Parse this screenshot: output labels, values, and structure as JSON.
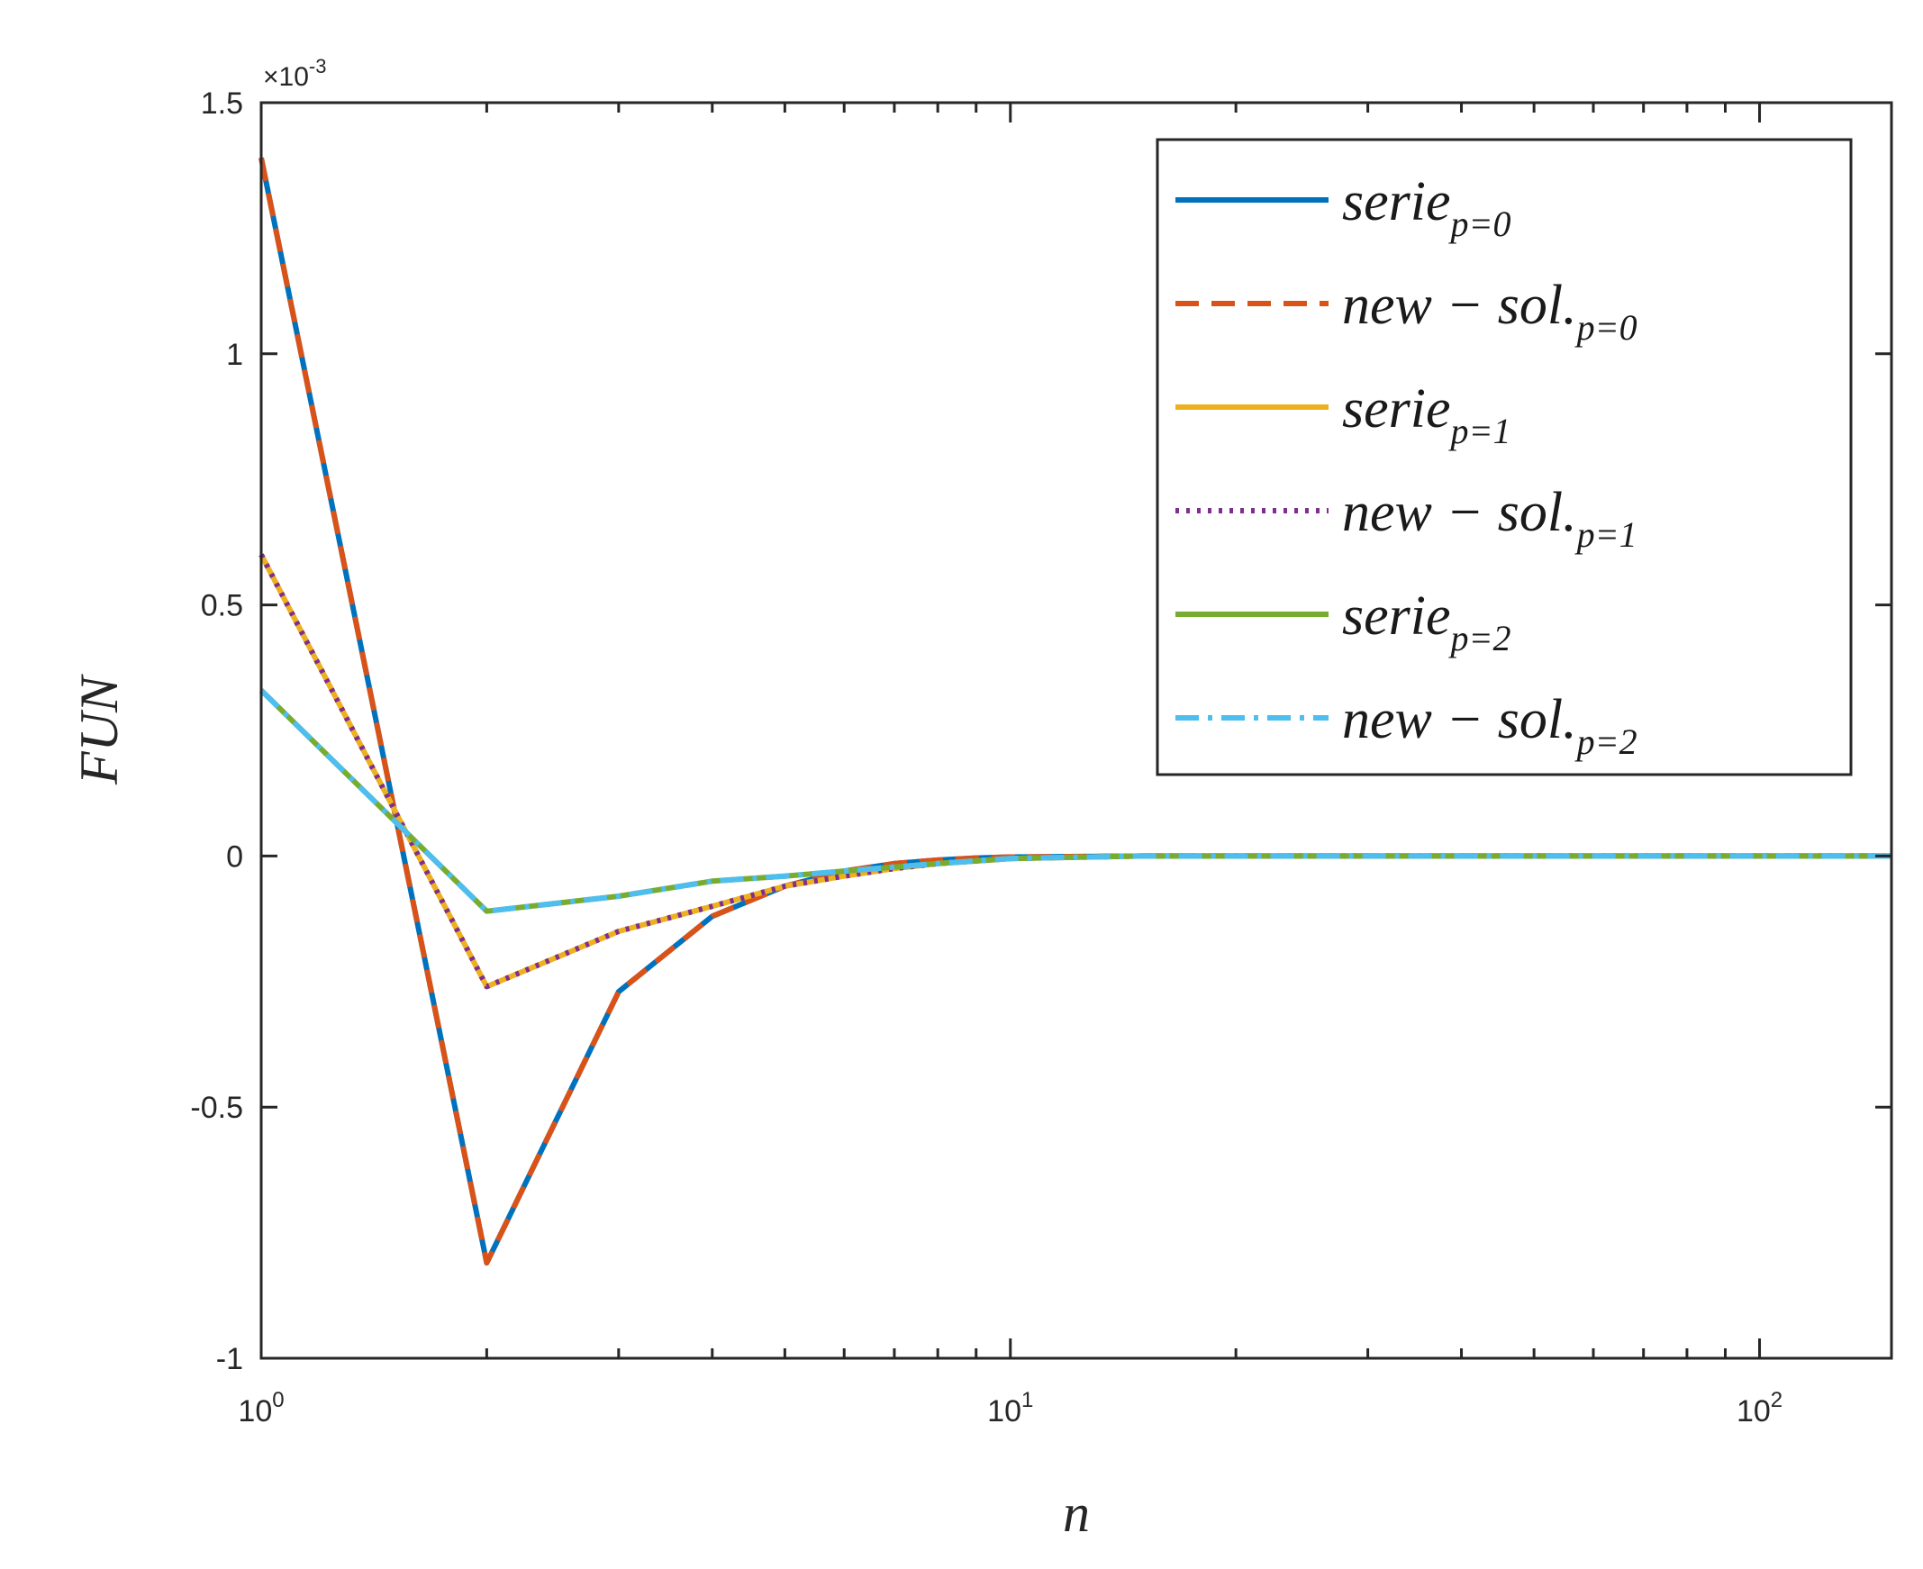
{
  "chart_data": {
    "type": "line",
    "xlabel": "n",
    "ylabel": "FUN",
    "xscale": "log",
    "xlim": [
      1,
      150
    ],
    "ylim": [
      -0.001,
      0.0015
    ],
    "y_exponent_label": "×10",
    "y_exponent_power": "-3",
    "xticks": [
      {
        "value": 1,
        "base": "10",
        "exp": "0"
      },
      {
        "value": 10,
        "base": "10",
        "exp": "1"
      },
      {
        "value": 100,
        "base": "10",
        "exp": "2"
      }
    ],
    "yticks": [
      {
        "value": 0.0015,
        "label": "1.5"
      },
      {
        "value": 0.001,
        "label": "1"
      },
      {
        "value": 0.0005,
        "label": "0.5"
      },
      {
        "value": 0,
        "label": "0"
      },
      {
        "value": -0.0005,
        "label": "-0.5"
      },
      {
        "value": -0.001,
        "label": "-1"
      }
    ],
    "grid": false,
    "legend_position": "top-right",
    "series": [
      {
        "name": "serie",
        "sub": "p=0",
        "color": "#0072BD",
        "dash": "solid",
        "x": [
          1,
          2,
          3,
          4,
          5,
          6,
          7,
          8,
          9,
          10,
          12,
          15,
          20,
          30,
          50,
          100,
          150
        ],
        "y": [
          0.00139,
          -0.00081,
          -0.00027,
          -0.00012,
          -6e-05,
          -3e-05,
          -1.5e-05,
          -8e-06,
          -4e-06,
          -2e-06,
          -1e-06,
          0,
          0,
          0,
          0,
          0,
          0
        ]
      },
      {
        "name": "new − sol.",
        "sub": "p=0",
        "color": "#D95319",
        "dash": "dashed",
        "x": [
          1,
          2,
          3,
          4,
          5,
          6,
          7,
          8,
          9,
          10,
          12,
          15,
          20,
          30,
          50,
          100,
          150
        ],
        "y": [
          0.00139,
          -0.00081,
          -0.00027,
          -0.00012,
          -6e-05,
          -3e-05,
          -1.5e-05,
          -8e-06,
          -4e-06,
          -2e-06,
          -1e-06,
          0,
          0,
          0,
          0,
          0,
          0
        ]
      },
      {
        "name": "serie",
        "sub": "p=1",
        "color": "#EDB120",
        "dash": "solid",
        "x": [
          1,
          2,
          3,
          4,
          5,
          6,
          7,
          8,
          10,
          15,
          20,
          50,
          100,
          150
        ],
        "y": [
          0.0006,
          -0.00026,
          -0.00015,
          -0.0001,
          -6e-05,
          -4e-05,
          -2.5e-05,
          -1.5e-05,
          -5e-06,
          0,
          0,
          0,
          0,
          0
        ]
      },
      {
        "name": "new − sol.",
        "sub": "p=1",
        "color": "#7E2F8E",
        "dash": "dotted",
        "x": [
          1,
          2,
          3,
          4,
          5,
          6,
          7,
          8,
          10,
          15,
          20,
          50,
          100,
          150
        ],
        "y": [
          0.0006,
          -0.00026,
          -0.00015,
          -0.0001,
          -6e-05,
          -4e-05,
          -2.5e-05,
          -1.5e-05,
          -5e-06,
          0,
          0,
          0,
          0,
          0
        ]
      },
      {
        "name": "serie",
        "sub": "p=2",
        "color": "#77AC30",
        "dash": "solid",
        "x": [
          1,
          2,
          3,
          4,
          5,
          6,
          8,
          10,
          15,
          20,
          50,
          100,
          150
        ],
        "y": [
          0.00033,
          -0.00011,
          -8e-05,
          -5e-05,
          -4e-05,
          -3e-05,
          -1.5e-05,
          -5e-06,
          0,
          0,
          0,
          0,
          0
        ]
      },
      {
        "name": "new − sol.",
        "sub": "p=2",
        "color": "#4DBEEE",
        "dash": "dashdot",
        "x": [
          1,
          2,
          3,
          4,
          5,
          6,
          8,
          10,
          15,
          20,
          50,
          100,
          150
        ],
        "y": [
          0.00033,
          -0.00011,
          -8e-05,
          -5e-05,
          -4e-05,
          -3e-05,
          -1.5e-05,
          -5e-06,
          0,
          0,
          0,
          0,
          0
        ]
      }
    ]
  }
}
